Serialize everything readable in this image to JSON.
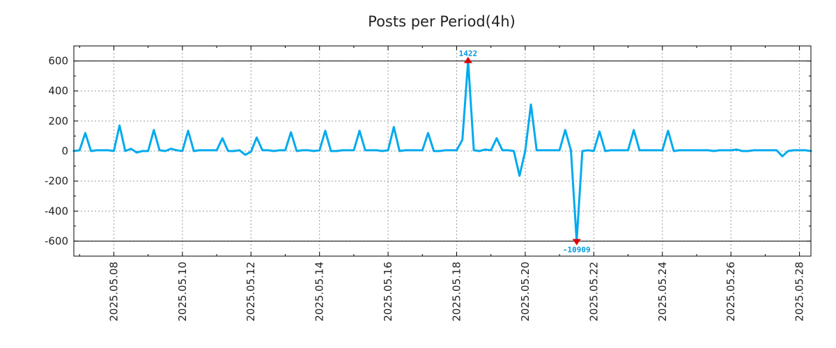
{
  "chart_data": {
    "type": "line",
    "title": "Posts per Period(4h)",
    "xlabel": "",
    "ylabel": "",
    "ylim": [
      -700,
      700
    ],
    "xlim": [
      "2025.05.06 20:00",
      "2025.05.28 08:00"
    ],
    "y_ticks": [
      "600",
      "400",
      "200",
      "0",
      "-200",
      "-400",
      "-600"
    ],
    "x_ticks": [
      "2025.05.08",
      "2025.05.10",
      "2025.05.12",
      "2025.05.14",
      "2025.05.16",
      "2025.05.18",
      "2025.05.20",
      "2025.05.22",
      "2025.05.24",
      "2025.05.26",
      "2025.05.28"
    ],
    "reference_lines": [
      600,
      -600
    ],
    "grid": true,
    "line_color": "#00aaee",
    "series": [
      {
        "name": "Posts per Period(4h)",
        "points": [
          [
            "2025.05.06 20:00",
            0
          ],
          [
            "2025.05.07 00:00",
            5
          ],
          [
            "2025.05.07 04:00",
            120
          ],
          [
            "2025.05.07 08:00",
            0
          ],
          [
            "2025.05.07 12:00",
            5
          ],
          [
            "2025.05.07 16:00",
            5
          ],
          [
            "2025.05.07 20:00",
            5
          ],
          [
            "2025.05.08 00:00",
            0
          ],
          [
            "2025.05.08 04:00",
            170
          ],
          [
            "2025.05.08 08:00",
            0
          ],
          [
            "2025.05.08 12:00",
            15
          ],
          [
            "2025.05.08 16:00",
            -10
          ],
          [
            "2025.05.08 20:00",
            0
          ],
          [
            "2025.05.09 00:00",
            0
          ],
          [
            "2025.05.09 04:00",
            140
          ],
          [
            "2025.05.09 08:00",
            5
          ],
          [
            "2025.05.09 12:00",
            0
          ],
          [
            "2025.05.09 16:00",
            15
          ],
          [
            "2025.05.09 20:00",
            5
          ],
          [
            "2025.05.10 00:00",
            0
          ],
          [
            "2025.05.10 04:00",
            135
          ],
          [
            "2025.05.10 08:00",
            0
          ],
          [
            "2025.05.10 12:00",
            5
          ],
          [
            "2025.05.10 16:00",
            5
          ],
          [
            "2025.05.10 20:00",
            5
          ],
          [
            "2025.05.11 00:00",
            5
          ],
          [
            "2025.05.11 04:00",
            85
          ],
          [
            "2025.05.11 08:00",
            0
          ],
          [
            "2025.05.11 12:00",
            0
          ],
          [
            "2025.05.11 16:00",
            5
          ],
          [
            "2025.05.11 20:00",
            -25
          ],
          [
            "2025.05.12 00:00",
            -5
          ],
          [
            "2025.05.12 04:00",
            90
          ],
          [
            "2025.05.12 08:00",
            5
          ],
          [
            "2025.05.12 12:00",
            5
          ],
          [
            "2025.05.12 16:00",
            0
          ],
          [
            "2025.05.12 20:00",
            5
          ],
          [
            "2025.05.13 00:00",
            5
          ],
          [
            "2025.05.13 04:00",
            125
          ],
          [
            "2025.05.13 08:00",
            0
          ],
          [
            "2025.05.13 12:00",
            5
          ],
          [
            "2025.05.13 16:00",
            5
          ],
          [
            "2025.05.13 20:00",
            0
          ],
          [
            "2025.05.14 00:00",
            5
          ],
          [
            "2025.05.14 04:00",
            135
          ],
          [
            "2025.05.14 08:00",
            0
          ],
          [
            "2025.05.14 12:00",
            0
          ],
          [
            "2025.05.14 16:00",
            5
          ],
          [
            "2025.05.14 20:00",
            5
          ],
          [
            "2025.05.15 00:00",
            5
          ],
          [
            "2025.05.15 04:00",
            135
          ],
          [
            "2025.05.15 08:00",
            5
          ],
          [
            "2025.05.15 12:00",
            5
          ],
          [
            "2025.05.15 16:00",
            5
          ],
          [
            "2025.05.15 20:00",
            0
          ],
          [
            "2025.05.16 00:00",
            5
          ],
          [
            "2025.05.16 04:00",
            160
          ],
          [
            "2025.05.16 08:00",
            0
          ],
          [
            "2025.05.16 12:00",
            5
          ],
          [
            "2025.05.16 16:00",
            5
          ],
          [
            "2025.05.16 20:00",
            5
          ],
          [
            "2025.05.17 00:00",
            5
          ],
          [
            "2025.05.17 04:00",
            120
          ],
          [
            "2025.05.17 08:00",
            0
          ],
          [
            "2025.05.17 12:00",
            0
          ],
          [
            "2025.05.17 16:00",
            5
          ],
          [
            "2025.05.17 20:00",
            5
          ],
          [
            "2025.05.18 00:00",
            5
          ],
          [
            "2025.05.18 04:00",
            75
          ],
          [
            "2025.05.18 08:00",
            600
          ],
          [
            "2025.05.18 12:00",
            5
          ],
          [
            "2025.05.18 16:00",
            0
          ],
          [
            "2025.05.18 20:00",
            10
          ],
          [
            "2025.05.19 00:00",
            5
          ],
          [
            "2025.05.19 04:00",
            85
          ],
          [
            "2025.05.19 08:00",
            5
          ],
          [
            "2025.05.19 12:00",
            5
          ],
          [
            "2025.05.19 16:00",
            0
          ],
          [
            "2025.05.19 20:00",
            -165
          ],
          [
            "2025.05.20 00:00",
            0
          ],
          [
            "2025.05.20 04:00",
            310
          ],
          [
            "2025.05.20 08:00",
            5
          ],
          [
            "2025.05.20 12:00",
            5
          ],
          [
            "2025.05.20 16:00",
            5
          ],
          [
            "2025.05.20 20:00",
            5
          ],
          [
            "2025.05.21 00:00",
            5
          ],
          [
            "2025.05.21 04:00",
            140
          ],
          [
            "2025.05.21 08:00",
            5
          ],
          [
            "2025.05.21 12:00",
            -600
          ],
          [
            "2025.05.21 16:00",
            0
          ],
          [
            "2025.05.21 20:00",
            5
          ],
          [
            "2025.05.22 00:00",
            0
          ],
          [
            "2025.05.22 04:00",
            130
          ],
          [
            "2025.05.22 08:00",
            0
          ],
          [
            "2025.05.22 12:00",
            5
          ],
          [
            "2025.05.22 16:00",
            5
          ],
          [
            "2025.05.22 20:00",
            5
          ],
          [
            "2025.05.23 00:00",
            5
          ],
          [
            "2025.05.23 04:00",
            140
          ],
          [
            "2025.05.23 08:00",
            5
          ],
          [
            "2025.05.23 12:00",
            5
          ],
          [
            "2025.05.23 16:00",
            5
          ],
          [
            "2025.05.23 20:00",
            5
          ],
          [
            "2025.05.24 00:00",
            5
          ],
          [
            "2025.05.24 04:00",
            135
          ],
          [
            "2025.05.24 08:00",
            0
          ],
          [
            "2025.05.24 12:00",
            5
          ],
          [
            "2025.05.24 16:00",
            5
          ],
          [
            "2025.05.24 20:00",
            5
          ],
          [
            "2025.05.25 00:00",
            5
          ],
          [
            "2025.05.25 04:00",
            5
          ],
          [
            "2025.05.25 08:00",
            5
          ],
          [
            "2025.05.25 12:00",
            0
          ],
          [
            "2025.05.25 16:00",
            5
          ],
          [
            "2025.05.25 20:00",
            5
          ],
          [
            "2025.05.26 00:00",
            5
          ],
          [
            "2025.05.26 04:00",
            10
          ],
          [
            "2025.05.26 08:00",
            0
          ],
          [
            "2025.05.26 12:00",
            0
          ],
          [
            "2025.05.26 16:00",
            5
          ],
          [
            "2025.05.26 20:00",
            5
          ],
          [
            "2025.05.27 00:00",
            5
          ],
          [
            "2025.05.27 04:00",
            5
          ],
          [
            "2025.05.27 08:00",
            5
          ],
          [
            "2025.05.27 12:00",
            -35
          ],
          [
            "2025.05.27 16:00",
            0
          ],
          [
            "2025.05.27 20:00",
            5
          ],
          [
            "2025.05.28 00:00",
            5
          ],
          [
            "2025.05.28 04:00",
            5
          ],
          [
            "2025.05.28 08:00",
            0
          ]
        ]
      }
    ],
    "annotations": [
      {
        "label": "1422",
        "at": "2025.05.18 08:00",
        "y": 600,
        "marker": "triangle-up",
        "marker_color": "#dd0000",
        "text_color": "#0099dd",
        "position": "above"
      },
      {
        "label": "-10909",
        "at": "2025.05.21 12:00",
        "y": -600,
        "marker": "triangle-down",
        "marker_color": "#dd0000",
        "text_color": "#0099dd",
        "position": "below"
      }
    ]
  }
}
